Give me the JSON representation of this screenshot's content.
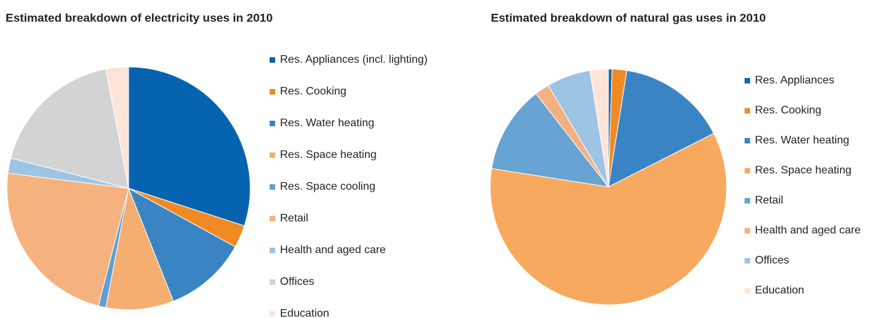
{
  "chart_data": [
    {
      "type": "pie",
      "title": "Estimated breakdown of electricity uses in 2010",
      "categories": [
        "Res. Appliances (incl. lighting)",
        "Res. Cooking",
        "Res. Water heating",
        "Res. Space heating",
        "Res. Space cooling",
        "Retail",
        "Health and aged care",
        "Offices",
        "Education"
      ],
      "values": [
        30,
        3,
        11,
        9,
        1,
        23,
        2,
        18,
        3
      ],
      "colors": [
        "#0563b0",
        "#f08a24",
        "#3a84c4",
        "#f5ad72",
        "#5f9fd1",
        "#f5b27e",
        "#9ec4e4",
        "#d3d3d3",
        "#fce4d6"
      ]
    },
    {
      "type": "pie",
      "title": "Estimated breakdown of natural gas uses in 2010",
      "categories": [
        "Res. Appliances",
        "Res. Cooking",
        "Res. Water heating",
        "Res. Space heating",
        "Retail",
        "Health and aged care",
        "Offices",
        "Education"
      ],
      "values": [
        0.5,
        2,
        15,
        60,
        12,
        2,
        6,
        2.5
      ],
      "colors": [
        "#1466b0",
        "#f08a24",
        "#3a84c4",
        "#f7a95f",
        "#67a3d3",
        "#f5b080",
        "#9ec4e4",
        "#fce4d6"
      ]
    }
  ]
}
